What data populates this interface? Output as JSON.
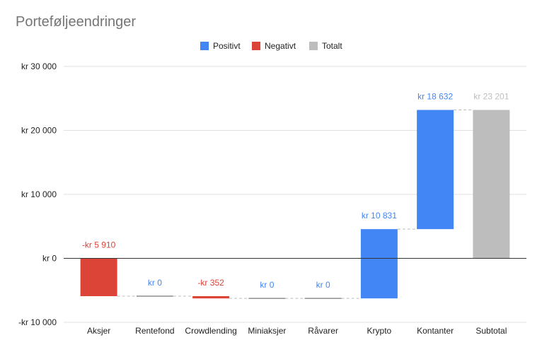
{
  "chart_data": {
    "type": "waterfall",
    "title": "Porteføljeendringer",
    "legend": {
      "placement": "top-center",
      "entries": [
        {
          "name": "Positivt",
          "color": "#4285f4"
        },
        {
          "name": "Negativt",
          "color": "#db4437"
        },
        {
          "name": "Totalt",
          "color": "#bdbdbd"
        }
      ]
    },
    "categories": [
      "Aksjer",
      "Rentefond",
      "Crowdlending",
      "Miniaksjer",
      "Råvarer",
      "Krypto",
      "Kontanter",
      "Subtotal"
    ],
    "values": [
      -5910,
      0,
      -352,
      0,
      0,
      10831,
      18632,
      23201
    ],
    "kinds": [
      "negative",
      "positive",
      "negative",
      "positive",
      "positive",
      "positive",
      "positive",
      "total"
    ],
    "data_labels": [
      "-kr  5 910",
      "kr  0",
      "-kr  352",
      "kr  0",
      "kr  0",
      "kr  10 831",
      "kr  18 632",
      "kr  23 201"
    ],
    "y_ticks": [
      -10000,
      0,
      10000,
      20000,
      30000
    ],
    "y_tick_labels": [
      "-kr  10 000",
      "kr  0",
      "kr  10 000",
      "kr  20 000",
      "kr  30 000"
    ],
    "ylim": [
      -10000,
      30000
    ],
    "grid": true,
    "colors": {
      "positive": "#4285f4",
      "negative": "#db4437",
      "total": "#bdbdbd",
      "grid": "#e0e0e0",
      "axis": "#333333",
      "text": "#222222"
    }
  }
}
